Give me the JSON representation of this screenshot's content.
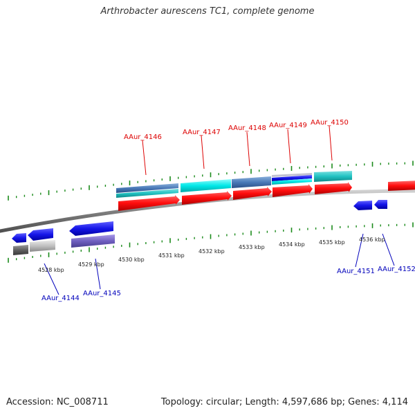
{
  "title": "Arthrobacter aurescens TC1, complete genome",
  "footer": {
    "accession": "Accession: NC_008711",
    "summary": "Topology: circular; Length: 4,597,686 bp; Genes: 4,114"
  },
  "colors": {
    "backbone": "#8a8a8a",
    "tick": "#1a8a1a",
    "top_label": "#dd0000",
    "bottom_label": "#0000bb",
    "red": "#ff1010",
    "blue": "#1a1ae6",
    "cyan": "#00e0e0",
    "teal": "#20c0c0",
    "steel": "#4a7ab8",
    "purple": "#7060c0",
    "gray": "#c0c0c0",
    "dark_gray": "#606060"
  },
  "scale_labels": [
    {
      "name": "kbp-4528",
      "text": "4528 kbp"
    },
    {
      "name": "kbp-4529",
      "text": "4529 kbp"
    },
    {
      "name": "kbp-4530",
      "text": "4530 kbp"
    },
    {
      "name": "kbp-4531",
      "text": "4531 kbp"
    },
    {
      "name": "kbp-4532",
      "text": "4532 kbp"
    },
    {
      "name": "kbp-4533",
      "text": "4533 kbp"
    },
    {
      "name": "kbp-4534",
      "text": "4534 kbp"
    },
    {
      "name": "kbp-4535",
      "text": "4535 kbp"
    },
    {
      "name": "kbp-4536",
      "text": "4536 kbp"
    }
  ],
  "top_genes": [
    {
      "name": "AAur_4146",
      "text": "AAur_4146"
    },
    {
      "name": "AAur_4147",
      "text": "AAur_4147"
    },
    {
      "name": "AAur_4148",
      "text": "AAur_4148"
    },
    {
      "name": "AAur_4149",
      "text": "AAur_4149"
    },
    {
      "name": "AAur_4150",
      "text": "AAur_4150"
    }
  ],
  "bottom_genes": [
    {
      "name": "AAur_4144",
      "text": "AAur_4144"
    },
    {
      "name": "AAur_4145",
      "text": "AAur_4145"
    },
    {
      "name": "AAur_4151",
      "text": "AAur_4151"
    },
    {
      "name": "AAur_4152",
      "text": "AAur_4152"
    }
  ]
}
